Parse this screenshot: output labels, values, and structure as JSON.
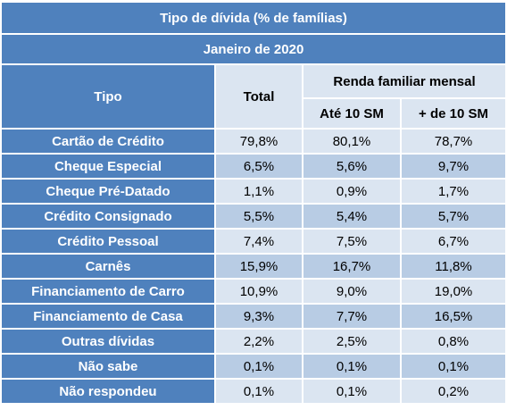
{
  "table": {
    "title": "Tipo de dívida (% de famílias)",
    "period": "Janeiro de 2020",
    "header": {
      "tipo": "Tipo",
      "total": "Total",
      "group": "Renda familiar mensal",
      "sub": [
        "Até 10 SM",
        "+ de 10 SM"
      ]
    },
    "rows": [
      [
        "Cartão de Crédito",
        "79,8%",
        "80,1%",
        "78,7%"
      ],
      [
        "Cheque Especial",
        "6,5%",
        "5,6%",
        "9,7%"
      ],
      [
        "Cheque Pré-Datado",
        "1,1%",
        "0,9%",
        "1,7%"
      ],
      [
        "Crédito Consignado",
        "5,5%",
        "5,4%",
        "5,7%"
      ],
      [
        "Crédito Pessoal",
        "7,4%",
        "7,5%",
        "6,7%"
      ],
      [
        "Carnês",
        "15,9%",
        "16,7%",
        "11,8%"
      ],
      [
        "Financiamento de Carro",
        "10,9%",
        "9,0%",
        "19,0%"
      ],
      [
        "Financiamento de Casa",
        "9,3%",
        "7,7%",
        "16,5%"
      ],
      [
        "Outras dívidas",
        "2,2%",
        "2,5%",
        "0,8%"
      ],
      [
        "Não sabe",
        "0,1%",
        "0,1%",
        "0,1%"
      ],
      [
        "Não respondeu",
        "0,1%",
        "0,1%",
        "0,2%"
      ]
    ]
  }
}
